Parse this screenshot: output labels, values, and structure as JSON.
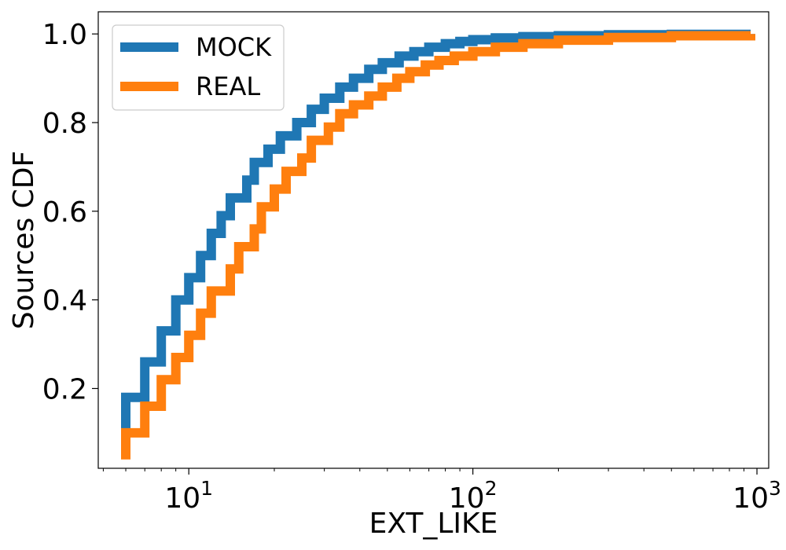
{
  "chart_data": {
    "type": "line",
    "xlabel": "EXT_LIKE",
    "ylabel": "Sources CDF",
    "xscale": "log",
    "xlim": [
      4.8,
      1100
    ],
    "ylim": [
      0.02,
      1.05
    ],
    "grid": false,
    "legend_location": "top-left",
    "x_tick_labels": [
      {
        "value": 10,
        "base": "10",
        "exp": "1"
      },
      {
        "value": 100,
        "base": "10",
        "exp": "2"
      },
      {
        "value": 1000,
        "base": "10",
        "exp": "3"
      }
    ],
    "y_ticks": [
      0.2,
      0.4,
      0.6,
      0.8,
      1.0
    ],
    "y_tick_labels": [
      "0.2",
      "0.4",
      "0.6",
      "0.8",
      "1.0"
    ],
    "series": [
      {
        "name": "MOCK",
        "color": "#1f77b4",
        "points": [
          [
            6,
            0.1
          ],
          [
            6,
            0.18
          ],
          [
            7,
            0.26
          ],
          [
            8,
            0.33
          ],
          [
            9,
            0.4
          ],
          [
            10,
            0.45
          ],
          [
            11,
            0.5
          ],
          [
            12,
            0.55
          ],
          [
            13,
            0.59
          ],
          [
            14,
            0.63
          ],
          [
            16,
            0.67
          ],
          [
            17,
            0.71
          ],
          [
            19,
            0.74
          ],
          [
            21,
            0.77
          ],
          [
            24,
            0.8
          ],
          [
            27,
            0.83
          ],
          [
            30,
            0.855
          ],
          [
            34,
            0.88
          ],
          [
            38,
            0.9
          ],
          [
            43,
            0.92
          ],
          [
            48,
            0.935
          ],
          [
            55,
            0.95
          ],
          [
            62,
            0.96
          ],
          [
            70,
            0.97
          ],
          [
            80,
            0.978
          ],
          [
            90,
            0.983
          ],
          [
            100,
            0.987
          ],
          [
            120,
            0.991
          ],
          [
            150,
            0.994
          ],
          [
            200,
            0.996
          ],
          [
            300,
            0.998
          ],
          [
            500,
            0.999
          ],
          [
            950,
            1.0
          ]
        ]
      },
      {
        "name": "REAL",
        "color": "#ff7f0e",
        "points": [
          [
            6,
            0.04
          ],
          [
            6,
            0.1
          ],
          [
            7,
            0.16
          ],
          [
            8,
            0.22
          ],
          [
            9,
            0.27
          ],
          [
            10,
            0.32
          ],
          [
            11,
            0.37
          ],
          [
            12,
            0.42
          ],
          [
            14,
            0.47
          ],
          [
            15,
            0.52
          ],
          [
            17,
            0.56
          ],
          [
            18,
            0.61
          ],
          [
            20,
            0.65
          ],
          [
            22,
            0.69
          ],
          [
            25,
            0.72
          ],
          [
            27,
            0.76
          ],
          [
            31,
            0.79
          ],
          [
            34,
            0.82
          ],
          [
            38,
            0.84
          ],
          [
            43,
            0.86
          ],
          [
            48,
            0.88
          ],
          [
            54,
            0.9
          ],
          [
            60,
            0.915
          ],
          [
            68,
            0.93
          ],
          [
            76,
            0.94
          ],
          [
            86,
            0.95
          ],
          [
            100,
            0.96
          ],
          [
            120,
            0.97
          ],
          [
            150,
            0.978
          ],
          [
            200,
            0.986
          ],
          [
            300,
            0.992
          ],
          [
            500,
            0.996
          ],
          [
            950,
            1.0
          ]
        ]
      }
    ]
  }
}
